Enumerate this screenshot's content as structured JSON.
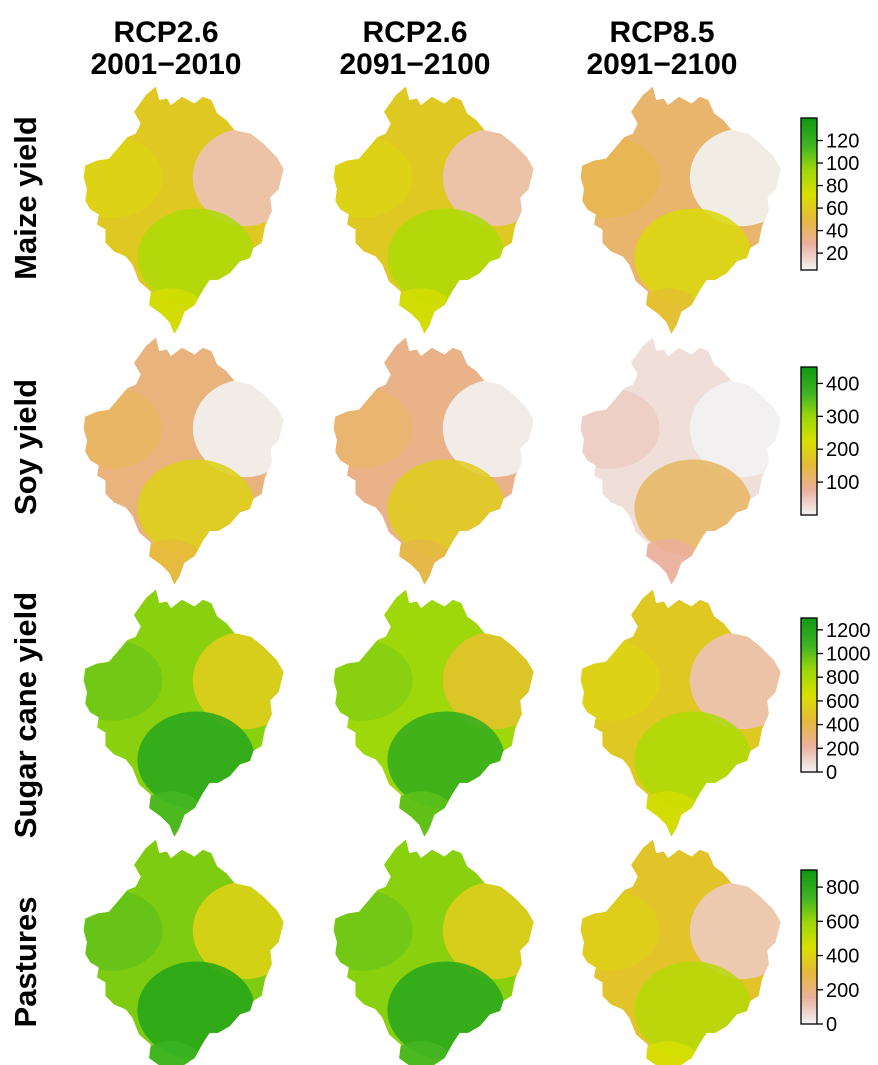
{
  "figure": {
    "columns": [
      {
        "line1": "RCP2.6",
        "line2": "2001−2010"
      },
      {
        "line1": "RCP2.6",
        "line2": "2091−2100"
      },
      {
        "line1": "RCP8.5",
        "line2": "2091−2100"
      }
    ],
    "rows": [
      {
        "label": "Maize yield",
        "scale_min": 5,
        "scale_max": 140,
        "ticks": [
          "20",
          "40",
          "60",
          "80",
          "100",
          "120"
        ],
        "levels": [
          0.4,
          0.4,
          0.25
        ]
      },
      {
        "label": "Soy yield",
        "scale_min": 0,
        "scale_max": 450,
        "ticks": [
          "100",
          "200",
          "300",
          "400"
        ],
        "levels": [
          0.22,
          0.2,
          0.05
        ]
      },
      {
        "label": "Sugar cane yield",
        "scale_min": 0,
        "scale_max": 1300,
        "ticks": [
          "0",
          "200",
          "400",
          "600",
          "800",
          "1000",
          "1200"
        ],
        "levels": [
          0.7,
          0.66,
          0.4
        ]
      },
      {
        "label": "Pastures",
        "scale_min": 0,
        "scale_max": 900,
        "ticks": [
          "0",
          "200",
          "400",
          "600",
          "800"
        ],
        "levels": [
          0.72,
          0.7,
          0.38
        ]
      }
    ],
    "colormap": [
      "#f2f2f2",
      "#ebb09d",
      "#e6b93a",
      "#d8df00",
      "#9cd80a",
      "#3db323",
      "#139a14"
    ]
  }
}
